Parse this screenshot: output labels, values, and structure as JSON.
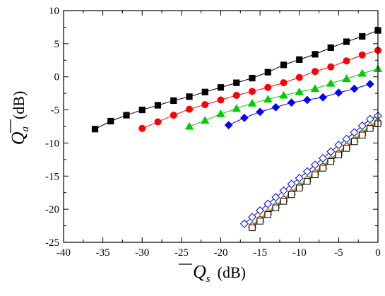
{
  "chart_data": {
    "type": "line",
    "xlabel": {
      "symbol": "Q",
      "subscript": "s",
      "unit": "(dB)"
    },
    "ylabel": {
      "symbol": "Q",
      "subscript": "a",
      "unit": "(dB)"
    },
    "xlim": [
      -40,
      0
    ],
    "ylim": [
      -25,
      10
    ],
    "xticks": [
      -40,
      -35,
      -30,
      -25,
      -20,
      -15,
      -10,
      -5,
      0
    ],
    "yticks": [
      10,
      5,
      0,
      -5,
      -10,
      -15,
      -20,
      -25
    ],
    "grid": false,
    "legend": "none",
    "series": [
      {
        "color": "#000000",
        "marker": "square",
        "filled": true,
        "x": [
          -36,
          -34,
          -32,
          -30,
          -28,
          -26,
          -24,
          -22,
          -20,
          -18,
          -16,
          -14,
          -12,
          -10,
          -8,
          -6,
          -4,
          -2,
          0
        ],
        "y": [
          -7.9,
          -6.7,
          -5.8,
          -5.0,
          -4.3,
          -3.6,
          -3.0,
          -2.3,
          -1.6,
          -0.9,
          -0.2,
          0.7,
          1.8,
          2.6,
          3.4,
          4.4,
          5.3,
          6.1,
          7.0
        ]
      },
      {
        "color": "#ff0000",
        "marker": "circle",
        "filled": true,
        "x": [
          -30,
          -28,
          -26,
          -24,
          -22,
          -20,
          -18,
          -16,
          -14,
          -12,
          -10,
          -8,
          -6,
          -4,
          -2,
          0
        ],
        "y": [
          -7.8,
          -6.8,
          -5.8,
          -4.9,
          -4.2,
          -3.5,
          -2.8,
          -2.2,
          -1.6,
          -0.9,
          -0.1,
          0.8,
          1.5,
          2.4,
          3.3,
          4.0
        ]
      },
      {
        "color": "#00cc00",
        "marker": "triangle",
        "filled": true,
        "x": [
          -24,
          -22,
          -20,
          -18,
          -16,
          -14,
          -12,
          -10,
          -8,
          -6,
          -4,
          -2,
          0
        ],
        "y": [
          -7.5,
          -6.6,
          -5.6,
          -4.8,
          -4.0,
          -3.4,
          -2.8,
          -2.3,
          -1.8,
          -1.0,
          -0.3,
          0.5,
          1.2
        ]
      },
      {
        "color": "#0000ff",
        "marker": "diamond",
        "filled": true,
        "x": [
          -19,
          -17,
          -15,
          -13,
          -11,
          -9,
          -7,
          -5,
          -3,
          -1
        ],
        "y": [
          -7.3,
          -6.2,
          -5.3,
          -4.6,
          -3.9,
          -3.5,
          -3.1,
          -2.4,
          -1.8,
          -1.1
        ]
      },
      {
        "color": "#0000ff",
        "marker": "diamond",
        "filled": false,
        "x": [
          -17,
          -16,
          -15,
          -14,
          -13,
          -12,
          -11,
          -10,
          -9,
          -8,
          -7,
          -6,
          -5,
          -4,
          -3,
          -2,
          -1,
          0
        ],
        "y": [
          -22.2,
          -21.2,
          -20.2,
          -19.2,
          -18.2,
          -17.2,
          -16.2,
          -15.3,
          -14.3,
          -13.3,
          -12.3,
          -11.3,
          -10.3,
          -9.4,
          -8.4,
          -7.4,
          -6.4,
          -5.9
        ]
      },
      {
        "color": "#00cc00",
        "marker": "triangle",
        "filled": false,
        "x": [
          -16,
          -15,
          -14,
          -13,
          -12,
          -11,
          -10,
          -9,
          -8,
          -7,
          -6,
          -5,
          -4,
          -3,
          -2,
          -1,
          0
        ],
        "y": [
          -22.4,
          -21.4,
          -20.4,
          -19.4,
          -18.4,
          -17.4,
          -16.4,
          -15.4,
          -14.4,
          -13.4,
          -12.4,
          -11.4,
          -10.4,
          -9.4,
          -8.4,
          -7.4,
          -6.6
        ]
      },
      {
        "color": "#ff0000",
        "marker": "circle",
        "filled": false,
        "x": [
          -16,
          -15,
          -14,
          -13,
          -12,
          -11,
          -10,
          -9,
          -8,
          -7,
          -6,
          -5,
          -4,
          -3,
          -2,
          -1,
          0
        ],
        "y": [
          -22.6,
          -21.6,
          -20.6,
          -19.6,
          -18.6,
          -17.6,
          -16.6,
          -15.6,
          -14.6,
          -13.6,
          -12.6,
          -11.6,
          -10.6,
          -9.6,
          -8.6,
          -7.6,
          -6.9
        ]
      },
      {
        "color": "#000000",
        "marker": "square",
        "filled": false,
        "x": [
          -16,
          -15,
          -14,
          -13,
          -12,
          -11,
          -10,
          -9,
          -8,
          -7,
          -6,
          -5,
          -4,
          -3,
          -2,
          -1,
          0
        ],
        "y": [
          -22.8,
          -21.8,
          -20.8,
          -19.8,
          -18.8,
          -17.8,
          -16.8,
          -15.8,
          -14.8,
          -13.8,
          -12.8,
          -11.8,
          -10.8,
          -9.8,
          -8.8,
          -7.8,
          -7.1
        ]
      }
    ]
  }
}
